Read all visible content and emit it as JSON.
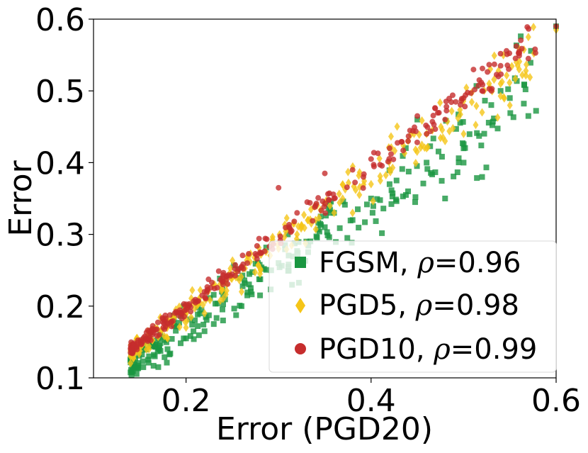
{
  "chart_data": {
    "type": "scatter",
    "title": "",
    "xlabel": "Error (PGD20)",
    "ylabel": "Error",
    "xlim": [
      0.1,
      0.6
    ],
    "ylim": [
      0.1,
      0.6
    ],
    "xticks": [
      0.2,
      0.4,
      0.6
    ],
    "xtick_labels": [
      "0.2",
      "0.4",
      "0.6"
    ],
    "yticks": [
      0.1,
      0.2,
      0.3,
      0.4,
      0.5,
      0.6
    ],
    "ytick_labels": [
      "0.1",
      "0.2",
      "0.3",
      "0.4",
      "0.5",
      "0.6"
    ],
    "legend_position": "bottom-right",
    "series": [
      {
        "name": "FGSM",
        "legend_prefix": "FGSM, ",
        "rho_symbol": "ρ",
        "rho_value": "=0.96",
        "color": "#1a9641",
        "marker": "square",
        "slope": 0.9,
        "offset": 0.0,
        "spread": 0.018,
        "points": [
          [
            0.14,
            0.125
          ],
          [
            0.16,
            0.13
          ],
          [
            0.17,
            0.115
          ],
          [
            0.18,
            0.14
          ],
          [
            0.2,
            0.155
          ],
          [
            0.22,
            0.165
          ],
          [
            0.24,
            0.18
          ],
          [
            0.26,
            0.2
          ],
          [
            0.28,
            0.215
          ],
          [
            0.3,
            0.26
          ],
          [
            0.31,
            0.3
          ],
          [
            0.33,
            0.29
          ],
          [
            0.35,
            0.31
          ],
          [
            0.38,
            0.32
          ],
          [
            0.4,
            0.35
          ],
          [
            0.42,
            0.37
          ],
          [
            0.44,
            0.36
          ],
          [
            0.46,
            0.4
          ],
          [
            0.48,
            0.35
          ],
          [
            0.5,
            0.4
          ],
          [
            0.52,
            0.38
          ],
          [
            0.54,
            0.5
          ],
          [
            0.55,
            0.49
          ],
          [
            0.57,
            0.465
          ],
          [
            0.6,
            0.59
          ],
          [
            0.45,
            0.46
          ],
          [
            0.5,
            0.42
          ],
          [
            0.36,
            0.33
          ],
          [
            0.27,
            0.22
          ],
          [
            0.23,
            0.175
          ]
        ]
      },
      {
        "name": "PGD5",
        "legend_prefix": "PGD5, ",
        "rho_symbol": "ρ",
        "rho_value": "=0.98",
        "color": "#f5c518",
        "marker": "diamond",
        "slope": 0.96,
        "offset": 0.0,
        "spread": 0.011,
        "points": [
          [
            0.14,
            0.13
          ],
          [
            0.16,
            0.14
          ],
          [
            0.18,
            0.155
          ],
          [
            0.2,
            0.17
          ],
          [
            0.22,
            0.19
          ],
          [
            0.24,
            0.21
          ],
          [
            0.26,
            0.22
          ],
          [
            0.28,
            0.245
          ],
          [
            0.3,
            0.28
          ],
          [
            0.32,
            0.3
          ],
          [
            0.34,
            0.32
          ],
          [
            0.36,
            0.33
          ],
          [
            0.38,
            0.33
          ],
          [
            0.4,
            0.37
          ],
          [
            0.42,
            0.39
          ],
          [
            0.44,
            0.43
          ],
          [
            0.46,
            0.42
          ],
          [
            0.48,
            0.43
          ],
          [
            0.5,
            0.44
          ],
          [
            0.52,
            0.47
          ],
          [
            0.54,
            0.51
          ],
          [
            0.56,
            0.53
          ],
          [
            0.57,
            0.575
          ],
          [
            0.6,
            0.585
          ],
          [
            0.55,
            0.48
          ],
          [
            0.46,
            0.44
          ],
          [
            0.41,
            0.375
          ]
        ]
      },
      {
        "name": "PGD10",
        "legend_prefix": "PGD10, ",
        "rho_symbol": "ρ",
        "rho_value": "=0.99",
        "color": "#c62d2d",
        "marker": "circle",
        "slope": 0.99,
        "offset": 0.0,
        "spread": 0.007,
        "points": [
          [
            0.14,
            0.135
          ],
          [
            0.16,
            0.155
          ],
          [
            0.18,
            0.175
          ],
          [
            0.2,
            0.195
          ],
          [
            0.22,
            0.22
          ],
          [
            0.24,
            0.235
          ],
          [
            0.26,
            0.255
          ],
          [
            0.28,
            0.275
          ],
          [
            0.3,
            0.365
          ],
          [
            0.32,
            0.33
          ],
          [
            0.34,
            0.34
          ],
          [
            0.36,
            0.35
          ],
          [
            0.38,
            0.39
          ],
          [
            0.4,
            0.405
          ],
          [
            0.42,
            0.42
          ],
          [
            0.44,
            0.43
          ],
          [
            0.46,
            0.44
          ],
          [
            0.48,
            0.46
          ],
          [
            0.5,
            0.49
          ],
          [
            0.52,
            0.5
          ],
          [
            0.54,
            0.535
          ],
          [
            0.56,
            0.555
          ],
          [
            0.57,
            0.545
          ],
          [
            0.6,
            0.59
          ],
          [
            0.35,
            0.385
          ],
          [
            0.45,
            0.465
          ],
          [
            0.53,
            0.5
          ]
        ]
      }
    ]
  }
}
